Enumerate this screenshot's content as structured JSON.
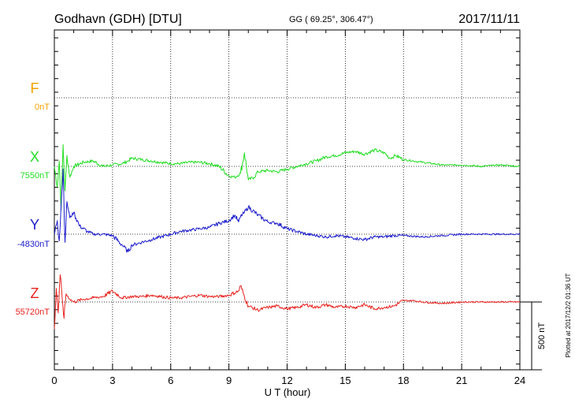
{
  "header": {
    "station": "Godhavn (GDH)  [DTU]",
    "coords": "GG ( 69.25°, 306.47°)",
    "date": "2017/11/11"
  },
  "plotted_note": "Plotted at 2017/12/2 01:36 UT",
  "scale_label": "500 nT",
  "chart_data": {
    "type": "line",
    "title": "Godhavn (GDH)  [DTU]",
    "xlabel": "U T (hour)",
    "ylabel": "",
    "xlim": [
      0,
      24
    ],
    "xticks": [
      "0",
      "3",
      "6",
      "9",
      "12",
      "15",
      "18",
      "21",
      "24"
    ],
    "grid": true,
    "nT_per_division": 500,
    "series": [
      {
        "name": "F",
        "baseline_label": "0nT",
        "color": "#f5a000",
        "x": [],
        "y": []
      },
      {
        "name": "X",
        "baseline_label": "7550nT",
        "color": "#22dd22",
        "x": [
          0,
          0.15,
          0.25,
          0.35,
          0.45,
          0.55,
          0.65,
          0.8,
          1.0,
          1.5,
          2.0,
          2.5,
          3.0,
          3.5,
          3.8,
          4.0,
          4.5,
          5.0,
          5.5,
          6.0,
          6.5,
          7.0,
          7.5,
          8.0,
          8.5,
          9.0,
          9.3,
          9.6,
          9.8,
          10.0,
          10.3,
          10.5,
          11.0,
          11.5,
          12.0,
          12.5,
          13.0,
          13.5,
          14.0,
          14.5,
          15.0,
          15.5,
          16.0,
          16.5,
          17.0,
          17.3,
          17.6,
          18.0,
          18.5,
          19.0,
          19.5,
          20.0,
          21.0,
          22.0,
          23.0,
          24.0
        ],
        "y": [
          0,
          -150,
          40,
          -320,
          160,
          -180,
          80,
          -80,
          0,
          30,
          40,
          0,
          10,
          20,
          40,
          60,
          50,
          40,
          30,
          20,
          20,
          30,
          30,
          20,
          0,
          -70,
          -80,
          -50,
          100,
          -100,
          -80,
          -40,
          -30,
          -40,
          -20,
          0,
          20,
          40,
          70,
          80,
          100,
          110,
          90,
          120,
          100,
          60,
          80,
          50,
          40,
          30,
          20,
          10,
          10,
          0,
          10,
          0
        ]
      },
      {
        "name": "Y",
        "baseline_label": "-4830nT",
        "color": "#1a1acc",
        "x": [
          0,
          0.15,
          0.25,
          0.35,
          0.45,
          0.55,
          0.65,
          0.8,
          1.0,
          1.3,
          1.7,
          2.0,
          2.5,
          3.0,
          3.5,
          3.8,
          4.0,
          4.5,
          5.0,
          5.5,
          6.0,
          6.5,
          7.0,
          7.5,
          8.0,
          8.5,
          9.0,
          9.3,
          9.5,
          9.6,
          9.8,
          10.0,
          10.5,
          11.0,
          11.5,
          12.0,
          12.5,
          13.0,
          13.5,
          14.0,
          14.5,
          15.0,
          15.5,
          16.0,
          16.5,
          17.0,
          17.5,
          18.0,
          19.0,
          20.0,
          21.0,
          22.0,
          23.0,
          24.0
        ],
        "y": [
          0,
          100,
          -50,
          220,
          480,
          -60,
          240,
          120,
          160,
          60,
          20,
          0,
          0,
          -10,
          -80,
          -130,
          -80,
          -60,
          -40,
          -20,
          0,
          20,
          30,
          40,
          50,
          80,
          100,
          140,
          90,
          130,
          160,
          200,
          140,
          90,
          80,
          40,
          20,
          0,
          -10,
          -20,
          -10,
          -20,
          -30,
          -40,
          -20,
          -20,
          -10,
          -10,
          -20,
          -10,
          0,
          0,
          0,
          0
        ]
      },
      {
        "name": "Z",
        "baseline_label": "55720nT",
        "color": "#e8221e",
        "x": [
          0,
          0.1,
          0.2,
          0.3,
          0.4,
          0.5,
          0.6,
          0.8,
          1.0,
          1.5,
          2.0,
          2.5,
          3.0,
          3.5,
          4.0,
          4.5,
          5.0,
          5.5,
          6.0,
          6.5,
          7.0,
          7.5,
          8.0,
          8.5,
          9.0,
          9.5,
          9.6,
          9.8,
          10.0,
          10.5,
          11.0,
          11.5,
          12.0,
          12.5,
          13.0,
          13.5,
          14.0,
          14.5,
          15.0,
          15.5,
          16.0,
          16.5,
          17.0,
          17.5,
          18.0,
          18.5,
          19.0,
          20.0,
          21.0,
          22.0,
          23.0,
          24.0
        ],
        "y": [
          -200,
          100,
          -80,
          200,
          40,
          -120,
          60,
          20,
          0,
          20,
          30,
          40,
          80,
          30,
          40,
          40,
          50,
          40,
          30,
          30,
          40,
          50,
          40,
          40,
          50,
          80,
          120,
          40,
          -30,
          -60,
          -40,
          -30,
          -50,
          -40,
          -20,
          -40,
          -20,
          -40,
          -30,
          -40,
          -20,
          -50,
          -40,
          -30,
          10,
          10,
          0,
          -10,
          0,
          0,
          0,
          0
        ]
      }
    ]
  }
}
